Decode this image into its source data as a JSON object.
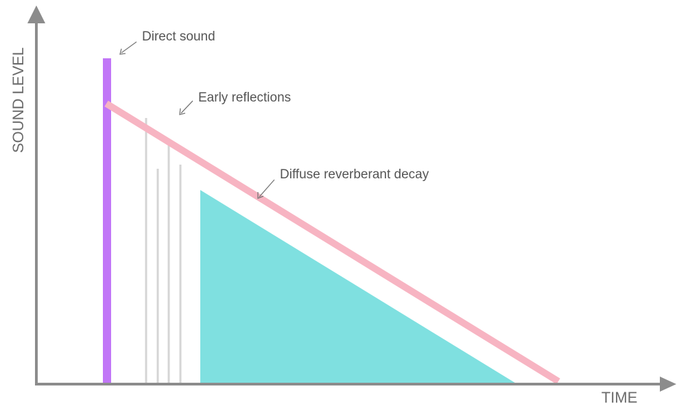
{
  "diagram": {
    "axes": {
      "y_label": "SOUND LEVEL",
      "x_label": "TIME"
    },
    "annotations": {
      "direct": "Direct sound",
      "early": "Early reflections",
      "diffuse": "Diffuse reverberant decay"
    },
    "colors": {
      "axis": "#8c8c8c",
      "direct_sound": "#c176f7",
      "decay_line": "#f7b4c2",
      "early_reflections": "#d5d5d5",
      "diffuse_fill": "#7fe0e0",
      "arrow": "#777777"
    }
  }
}
